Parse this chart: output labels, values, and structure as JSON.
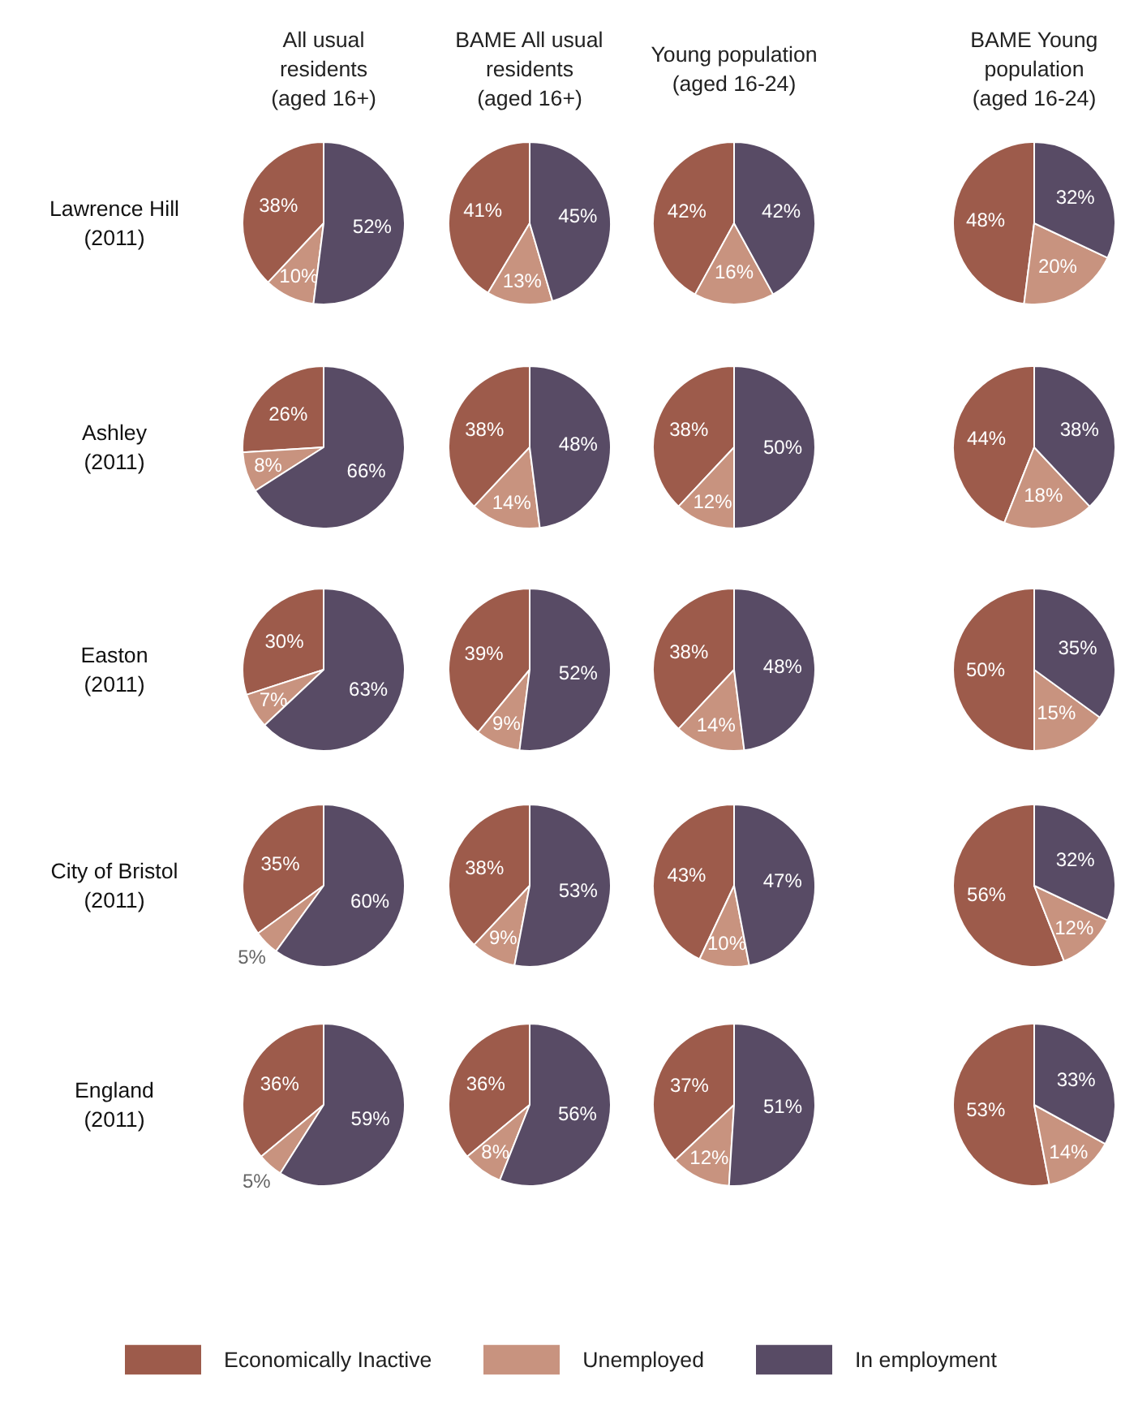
{
  "chart_data": [
    {
      "type": "pie",
      "title": "All usual\nresidents\n(aged 16+)",
      "ylabel": "Lawrence Hill\n(2011)",
      "categories": [
        null,
        null,
        null
      ],
      "values": [
        38,
        10,
        52
      ],
      "value_labels": [
        "38%",
        "10%",
        "52%"
      ],
      "colors": [
        "#9d5b4b",
        "#c8937f",
        "#584b65"
      ]
    },
    {
      "type": "pie",
      "title": "BAME All usual\nresidents\n(aged 16+)",
      "categories": [
        null,
        null,
        null
      ],
      "values": [
        41,
        13,
        45
      ],
      "value_labels": [
        "41%",
        "13%",
        "45%"
      ],
      "colors": [
        "#9d5b4b",
        "#c8937f",
        "#584b65"
      ]
    },
    {
      "type": "pie",
      "title": "Young population\n(aged 16-24)",
      "categories": [
        null,
        null,
        null
      ],
      "values": [
        42,
        16,
        42
      ],
      "value_labels": [
        "42%",
        "16%",
        "42%"
      ],
      "colors": [
        "#9d5b4b",
        "#c8937f",
        "#584b65"
      ]
    },
    {
      "type": "pie",
      "title": "BAME Young\npopulation\n(aged 16-24)",
      "categories": [
        null,
        null,
        null
      ],
      "values": [
        48,
        20,
        32
      ],
      "value_labels": [
        "48%",
        "20%",
        "32%"
      ],
      "colors": [
        "#9d5b4b",
        "#c8937f",
        "#584b65"
      ]
    },
    {
      "type": "pie",
      "ylabel": "Ashley\n(2011)",
      "categories": [
        null,
        null,
        null
      ],
      "values": [
        26,
        8,
        66
      ],
      "value_labels": [
        "26%",
        "8%",
        "66%"
      ],
      "colors": [
        "#9d5b4b",
        "#c8937f",
        "#584b65"
      ]
    },
    {
      "type": "pie",
      "categories": [
        null,
        null,
        null
      ],
      "values": [
        38,
        14,
        48
      ],
      "value_labels": [
        "38%",
        "14%",
        "48%"
      ],
      "colors": [
        "#9d5b4b",
        "#c8937f",
        "#584b65"
      ]
    },
    {
      "type": "pie",
      "categories": [
        null,
        null,
        null
      ],
      "values": [
        38,
        12,
        50
      ],
      "value_labels": [
        "38%",
        "12%",
        "50%"
      ],
      "colors": [
        "#9d5b4b",
        "#c8937f",
        "#584b65"
      ]
    },
    {
      "type": "pie",
      "categories": [
        null,
        null,
        null
      ],
      "values": [
        44,
        18,
        38
      ],
      "value_labels": [
        "44%",
        "18%",
        "38%"
      ],
      "colors": [
        "#9d5b4b",
        "#c8937f",
        "#584b65"
      ]
    },
    {
      "type": "pie",
      "ylabel": "Easton\n(2011)",
      "categories": [
        null,
        null,
        null
      ],
      "values": [
        30,
        7,
        63
      ],
      "value_labels": [
        "30%",
        "7%",
        "63%"
      ],
      "colors": [
        "#9d5b4b",
        "#c8937f",
        "#584b65"
      ]
    },
    {
      "type": "pie",
      "categories": [
        null,
        null,
        null
      ],
      "values": [
        39,
        9,
        52
      ],
      "value_labels": [
        "39%",
        "9%",
        "52%"
      ],
      "colors": [
        "#9d5b4b",
        "#c8937f",
        "#584b65"
      ]
    },
    {
      "type": "pie",
      "categories": [
        null,
        null,
        null
      ],
      "values": [
        38,
        14,
        48
      ],
      "value_labels": [
        "38%",
        "14%",
        "48%"
      ],
      "colors": [
        "#9d5b4b",
        "#c8937f",
        "#584b65"
      ]
    },
    {
      "type": "pie",
      "categories": [
        null,
        null,
        null
      ],
      "values": [
        50,
        15,
        35
      ],
      "value_labels": [
        "50%",
        "15%",
        "35%"
      ],
      "colors": [
        "#9d5b4b",
        "#c8937f",
        "#584b65"
      ]
    },
    {
      "type": "pie",
      "ylabel": "City of Bristol\n(2011)",
      "categories": [
        null,
        null,
        null
      ],
      "values": [
        35,
        5,
        60
      ],
      "value_labels": [
        "35%",
        "5%",
        "60%"
      ],
      "colors": [
        "#9d5b4b",
        "#c8937f",
        "#584b65"
      ]
    },
    {
      "type": "pie",
      "categories": [
        null,
        null,
        null
      ],
      "values": [
        38,
        9,
        53
      ],
      "value_labels": [
        "38%",
        "9%",
        "53%"
      ],
      "colors": [
        "#9d5b4b",
        "#c8937f",
        "#584b65"
      ]
    },
    {
      "type": "pie",
      "categories": [
        null,
        null,
        null
      ],
      "values": [
        43,
        10,
        47
      ],
      "value_labels": [
        "43%",
        "10%",
        "47%"
      ],
      "colors": [
        "#9d5b4b",
        "#c8937f",
        "#584b65"
      ]
    },
    {
      "type": "pie",
      "categories": [
        null,
        null,
        null
      ],
      "values": [
        56,
        12,
        32
      ],
      "value_labels": [
        "56%",
        "12%",
        "32%"
      ],
      "colors": [
        "#9d5b4b",
        "#c8937f",
        "#584b65"
      ]
    },
    {
      "type": "pie",
      "ylabel": "England\n(2011)",
      "categories": [
        null,
        null,
        null
      ],
      "values": [
        36,
        5,
        59
      ],
      "value_labels": [
        "36%",
        "5%",
        "59%"
      ],
      "colors": [
        "#9d5b4b",
        "#c8937f",
        "#584b65"
      ]
    },
    {
      "type": "pie",
      "categories": [
        null,
        null,
        null
      ],
      "values": [
        36,
        8,
        56
      ],
      "value_labels": [
        "36%",
        "8%",
        "56%"
      ],
      "colors": [
        "#9d5b4b",
        "#c8937f",
        "#584b65"
      ]
    },
    {
      "type": "pie",
      "categories": [
        null,
        null,
        null
      ],
      "values": [
        37,
        12,
        51
      ],
      "value_labels": [
        "37%",
        "12%",
        "51%"
      ],
      "colors": [
        "#9d5b4b",
        "#c8937f",
        "#584b65"
      ]
    },
    {
      "type": "pie",
      "legend": "bottom",
      "categories": [
        "Economically Inactive",
        "Unemployed",
        "In employment"
      ],
      "values": [
        53,
        14,
        33
      ],
      "value_labels": [
        "53%",
        "14%",
        "33%"
      ],
      "colors": [
        "#9d5b4b",
        "#c8937f",
        "#584b65"
      ]
    }
  ]
}
